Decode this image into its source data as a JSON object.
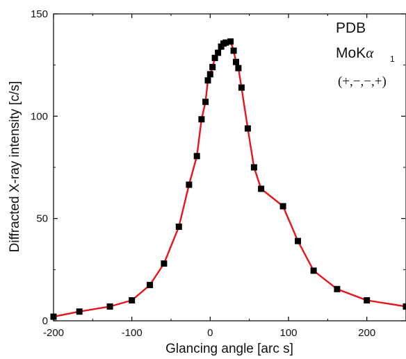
{
  "chart_data": {
    "type": "line",
    "xlabel": "Glancing angle [arc s]",
    "ylabel": "Diffracted X-ray intensity [c/s]",
    "xlim": [
      -200,
      250
    ],
    "ylim": [
      0,
      150
    ],
    "x_ticks": [
      -200,
      -100,
      0,
      100,
      200
    ],
    "x_tick_labels": [
      "-200",
      "-100",
      "0",
      "100",
      "200"
    ],
    "y_ticks": [
      0,
      50,
      100,
      150
    ],
    "y_tick_labels": [
      "0",
      "50",
      "100",
      "150"
    ],
    "grid": false,
    "annotations": {
      "line1": "PDB",
      "line2_main": "MoK",
      "line2_greek": "α",
      "line2_sub": "1",
      "line3": "(+,−,−,+)"
    },
    "series": [
      {
        "line_color": "#e8141c",
        "marker_color": "#000000",
        "marker": "square",
        "x": [
          -200,
          -167,
          -128,
          -100,
          -77,
          -59,
          -40,
          -27,
          -17,
          -11,
          -6,
          -3,
          0,
          3,
          6,
          10,
          14,
          17,
          20,
          26,
          30,
          33,
          36,
          40,
          48,
          56,
          65,
          93,
          112,
          132,
          162,
          200,
          250
        ],
        "y": [
          2,
          4.5,
          7,
          10,
          17.5,
          28,
          46,
          66.5,
          80.5,
          98.5,
          107,
          117.5,
          120.5,
          124,
          128.5,
          131,
          134,
          135.5,
          136,
          136.5,
          132,
          126.5,
          123.5,
          114,
          94,
          75,
          64.5,
          56,
          39,
          24.5,
          15.5,
          10,
          7
        ]
      }
    ]
  }
}
